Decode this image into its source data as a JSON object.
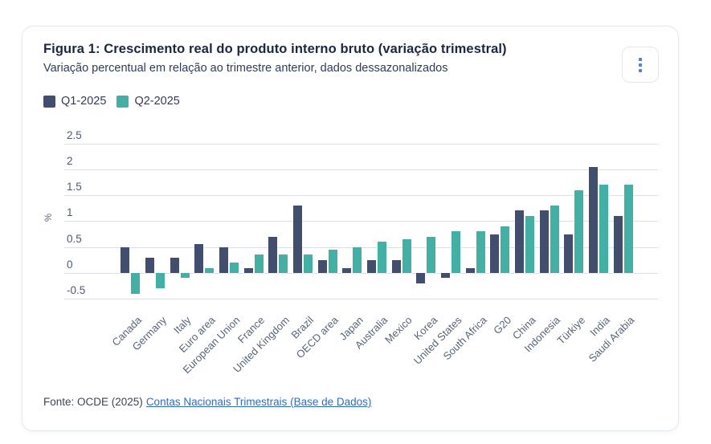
{
  "header": {
    "menu_icon": "kebab-menu-icon"
  },
  "footer": {
    "source_prefix": "Fonte: OCDE (2025)",
    "link_text": "Contas Nacionais Trimestrais (Base de Dados)"
  },
  "colors": {
    "q1_navy": "#424e6e",
    "q2_teal": "#42b1a5",
    "title_text": "#1a2744",
    "body_text": "#2f3d5a",
    "axis_text": "#4c5a75",
    "gridline": "#d8dde7",
    "link_blue": "#2e6bd6",
    "card_border": "#e4e8ef",
    "menu_dots_blue": "#4e80e8"
  },
  "chart_data": {
    "type": "bar",
    "title": "Figura 1: Crescimento real do produto interno bruto (variação trimestral)",
    "subtitle": "Variação percentual em relação ao trimestre anterior, dados dessazonalizados",
    "xlabel": "",
    "ylabel": "%",
    "ylim": [
      -0.5,
      2.5
    ],
    "yticks": [
      2.5,
      2,
      1.5,
      1,
      0.5,
      0,
      -0.5
    ],
    "grid": true,
    "legend_position": "top-left",
    "categories": [
      "Canada",
      "Germany",
      "Italy",
      "Euro area",
      "European Union",
      "France",
      "United Kingdom",
      "Brazil",
      "OECD area",
      "Japan",
      "Australia",
      "Mexico",
      "Korea",
      "United States",
      "South Africa",
      "G20",
      "China",
      "Indonesia",
      "Türkiye",
      "India",
      "Saudi Arabia"
    ],
    "series": [
      {
        "name": "Q1-2025",
        "color": "#424e6e",
        "values": [
          0.5,
          0.3,
          0.3,
          0.55,
          0.5,
          0.1,
          0.7,
          1.3,
          0.25,
          0.1,
          0.25,
          0.25,
          -0.2,
          -0.1,
          0.1,
          0.75,
          1.2,
          1.2,
          0.75,
          2.05,
          1.1
        ]
      },
      {
        "name": "Q2-2025",
        "color": "#42b1a5",
        "values": [
          -0.4,
          -0.3,
          -0.1,
          0.1,
          0.2,
          0.35,
          0.35,
          0.35,
          0.45,
          0.5,
          0.6,
          0.65,
          0.7,
          0.8,
          0.8,
          0.9,
          1.1,
          1.3,
          1.6,
          1.7,
          1.7
        ]
      }
    ]
  }
}
